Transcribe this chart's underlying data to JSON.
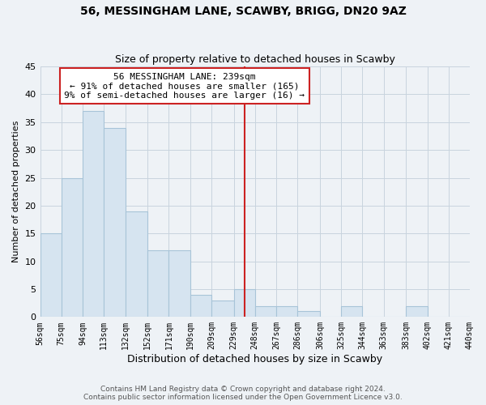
{
  "title": "56, MESSINGHAM LANE, SCAWBY, BRIGG, DN20 9AZ",
  "subtitle": "Size of property relative to detached houses in Scawby",
  "xlabel": "Distribution of detached houses by size in Scawby",
  "ylabel": "Number of detached properties",
  "bar_color": "#d6e4f0",
  "bar_edge_color": "#a8c4d8",
  "bins": [
    56,
    75,
    94,
    113,
    132,
    152,
    171,
    190,
    209,
    229,
    248,
    267,
    286,
    306,
    325,
    344,
    363,
    383,
    402,
    421,
    440
  ],
  "counts": [
    15,
    25,
    37,
    34,
    19,
    12,
    12,
    4,
    3,
    5,
    2,
    2,
    1,
    0,
    2,
    0,
    0,
    2,
    0,
    0
  ],
  "tick_labels": [
    "56sqm",
    "75sqm",
    "94sqm",
    "113sqm",
    "132sqm",
    "152sqm",
    "171sqm",
    "190sqm",
    "209sqm",
    "229sqm",
    "248sqm",
    "267sqm",
    "286sqm",
    "306sqm",
    "325sqm",
    "344sqm",
    "363sqm",
    "383sqm",
    "402sqm",
    "421sqm",
    "440sqm"
  ],
  "property_line_x": 239,
  "annotation_title": "56 MESSINGHAM LANE: 239sqm",
  "annotation_line1": "← 91% of detached houses are smaller (165)",
  "annotation_line2": "9% of semi-detached houses are larger (16) →",
  "annotation_box_color": "#ffffff",
  "annotation_border_color": "#cc2222",
  "vline_color": "#cc2222",
  "ylim": [
    0,
    45
  ],
  "yticks": [
    0,
    5,
    10,
    15,
    20,
    25,
    30,
    35,
    40,
    45
  ],
  "grid_color": "#c8d4de",
  "background_color": "#eef2f6",
  "footer_line1": "Contains HM Land Registry data © Crown copyright and database right 2024.",
  "footer_line2": "Contains public sector information licensed under the Open Government Licence v3.0."
}
